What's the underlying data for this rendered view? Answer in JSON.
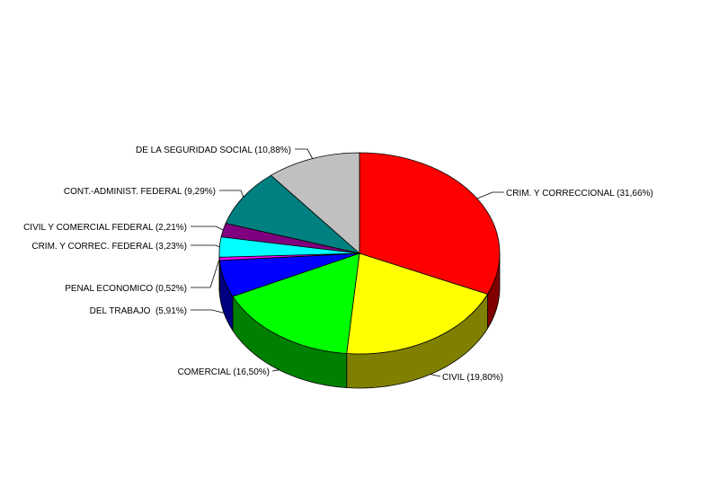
{
  "chart_data": {
    "type": "pie",
    "style": "3d",
    "start_angle_deg": -90,
    "direction": "clockwise",
    "slices": [
      {
        "label": "CRIM. Y CORRECCIONAL (31,66%)",
        "value": 31.66,
        "color": "#ff0000",
        "side_color": "#800000"
      },
      {
        "label": "CIVIL (19,80%)",
        "value": 19.8,
        "color": "#ffff00",
        "side_color": "#808000"
      },
      {
        "label": "COMERCIAL (16,50%)",
        "value": 16.5,
        "color": "#00ff00",
        "side_color": "#008000"
      },
      {
        "label": "DEL TRABAJO  (5,91%)",
        "value": 5.91,
        "color": "#0000ff",
        "side_color": "#000080"
      },
      {
        "label": "PENAL ECONOMICO (0,52%)",
        "value": 0.52,
        "color": "#ff00ff",
        "side_color": "#800080"
      },
      {
        "label": "CRIM. Y CORREC. FEDERAL (3,23%)",
        "value": 3.23,
        "color": "#00ffff",
        "side_color": "#008080"
      },
      {
        "label": "CIVIL Y COMERCIAL FEDERAL (2,21%)",
        "value": 2.21,
        "color": "#800080",
        "side_color": "#400040"
      },
      {
        "label": "CONT.-ADMINIST. FEDERAL (9,29%)",
        "value": 9.29,
        "color": "#008080",
        "side_color": "#004040"
      },
      {
        "label": "DE LA SEGURIDAD SOCIAL (10,88%)",
        "value": 10.88,
        "color": "#c0c0c0",
        "side_color": "#808080"
      }
    ]
  }
}
